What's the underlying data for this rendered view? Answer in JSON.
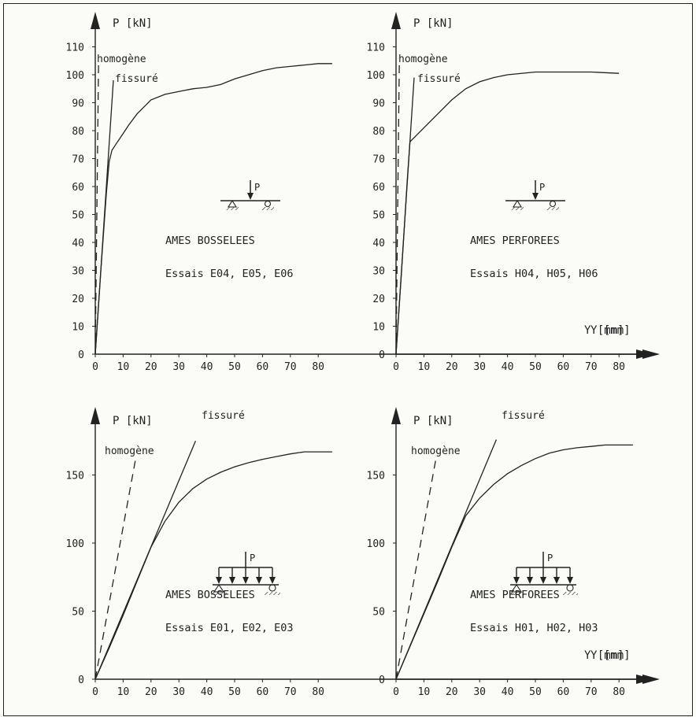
{
  "colors": {
    "ink": "#222222",
    "background": "#fbfbf8"
  },
  "chart_data": [
    {
      "type": "line",
      "panel": "top-left",
      "ylabel": "P [kN]",
      "xlabel": "Y [mm]",
      "xlim": [
        0,
        87
      ],
      "ylim": [
        0,
        115
      ],
      "xticks": [
        0,
        10,
        20,
        30,
        40,
        50,
        60,
        70,
        80
      ],
      "yticks": [
        0,
        10,
        20,
        30,
        40,
        50,
        60,
        70,
        80,
        90,
        100,
        110
      ],
      "text_lines": [
        "AMES BOSSELEES",
        "Essais E04, E05, E06"
      ],
      "load_schematic": "point",
      "series": [
        {
          "name": "homogène",
          "style": "dashed",
          "x": [
            0,
            1.2
          ],
          "y": [
            0,
            105
          ]
        },
        {
          "name": "fissuré",
          "style": "solid",
          "x": [
            0,
            6.5
          ],
          "y": [
            0,
            98
          ]
        },
        {
          "name": "",
          "style": "solid",
          "x": [
            0,
            2,
            4,
            5,
            6,
            8,
            10,
            12,
            15,
            18,
            20,
            25,
            30,
            35,
            40,
            45,
            50,
            55,
            60,
            65,
            70,
            75,
            80,
            85
          ],
          "y": [
            0,
            30,
            58,
            69,
            73,
            76,
            79,
            82,
            86,
            89,
            91,
            93,
            94,
            95,
            95.5,
            96.5,
            98.5,
            100,
            101.5,
            102.5,
            103,
            103.5,
            104,
            104
          ]
        }
      ]
    },
    {
      "type": "line",
      "panel": "top-right",
      "ylabel": "P [kN]",
      "xlabel": "Y [mm]",
      "xlim": [
        0,
        87
      ],
      "ylim": [
        0,
        115
      ],
      "xticks": [
        0,
        10,
        20,
        30,
        40,
        50,
        60,
        70,
        80
      ],
      "yticks": [
        0,
        10,
        20,
        30,
        40,
        50,
        60,
        70,
        80,
        90,
        100,
        110
      ],
      "text_lines": [
        "AMES PERFOREES",
        "Essais H04, H05, H06"
      ],
      "load_schematic": "point",
      "series": [
        {
          "name": "homogène",
          "style": "dashed",
          "x": [
            0,
            1.2
          ],
          "y": [
            0,
            105
          ]
        },
        {
          "name": "fissuré",
          "style": "solid",
          "x": [
            0,
            6.5
          ],
          "y": [
            0,
            99
          ]
        },
        {
          "name": "",
          "style": "solid",
          "x": [
            0,
            2,
            4,
            5,
            6,
            8,
            10,
            15,
            20,
            25,
            30,
            35,
            40,
            50,
            60,
            70,
            80
          ],
          "y": [
            0,
            30,
            62,
            76,
            77,
            79,
            81,
            86,
            91,
            95,
            97.5,
            99,
            100,
            101,
            101,
            101,
            100.5
          ]
        }
      ]
    },
    {
      "type": "line",
      "panel": "bottom-left",
      "ylabel": "P [kN]",
      "xlabel": "Y [mm]",
      "xlim": [
        0,
        87
      ],
      "ylim": [
        0,
        180
      ],
      "xticks": [
        0,
        10,
        20,
        30,
        40,
        50,
        60,
        70,
        80
      ],
      "yticks": [
        0,
        50,
        100,
        150
      ],
      "text_lines": [
        "AMES BOSSELEES",
        "Essais E01, E02, E03"
      ],
      "load_schematic": "distributed",
      "series": [
        {
          "name": "homogène",
          "style": "dashed",
          "x": [
            0,
            14.5
          ],
          "y": [
            0,
            162
          ]
        },
        {
          "name": "fissuré",
          "style": "solid",
          "x": [
            0,
            36
          ],
          "y": [
            0,
            175
          ]
        },
        {
          "name": "",
          "style": "solid",
          "x": [
            0,
            5,
            10,
            15,
            20,
            25,
            30,
            35,
            40,
            45,
            50,
            55,
            60,
            65,
            70,
            75,
            80,
            85
          ],
          "y": [
            0,
            23,
            47,
            72,
            97,
            116,
            130,
            140,
            147,
            152,
            156,
            159,
            161.5,
            163.5,
            165.5,
            167,
            167,
            167
          ]
        }
      ]
    },
    {
      "type": "line",
      "panel": "bottom-right",
      "ylabel": "P [kN]",
      "xlabel": "Y [mm]",
      "xlim": [
        0,
        87
      ],
      "ylim": [
        0,
        180
      ],
      "xticks": [
        0,
        10,
        20,
        30,
        40,
        50,
        60,
        70,
        80
      ],
      "yticks": [
        0,
        50,
        100,
        150
      ],
      "text_lines": [
        "AMES PERFOREES",
        "Essais H01, H02, H03"
      ],
      "load_schematic": "distributed",
      "series": [
        {
          "name": "homogène",
          "style": "dashed",
          "x": [
            0,
            14.5
          ],
          "y": [
            0,
            164
          ]
        },
        {
          "name": "fissuré",
          "style": "solid",
          "x": [
            0,
            36
          ],
          "y": [
            0,
            176
          ]
        },
        {
          "name": "",
          "style": "solid",
          "x": [
            0,
            5,
            10,
            15,
            20,
            25,
            30,
            35,
            40,
            45,
            50,
            55,
            60,
            65,
            70,
            75,
            80,
            85
          ],
          "y": [
            0,
            24,
            48,
            72,
            97,
            120,
            133,
            143,
            151,
            157,
            162,
            166,
            168.5,
            170,
            171,
            172,
            172,
            172
          ]
        }
      ]
    }
  ]
}
